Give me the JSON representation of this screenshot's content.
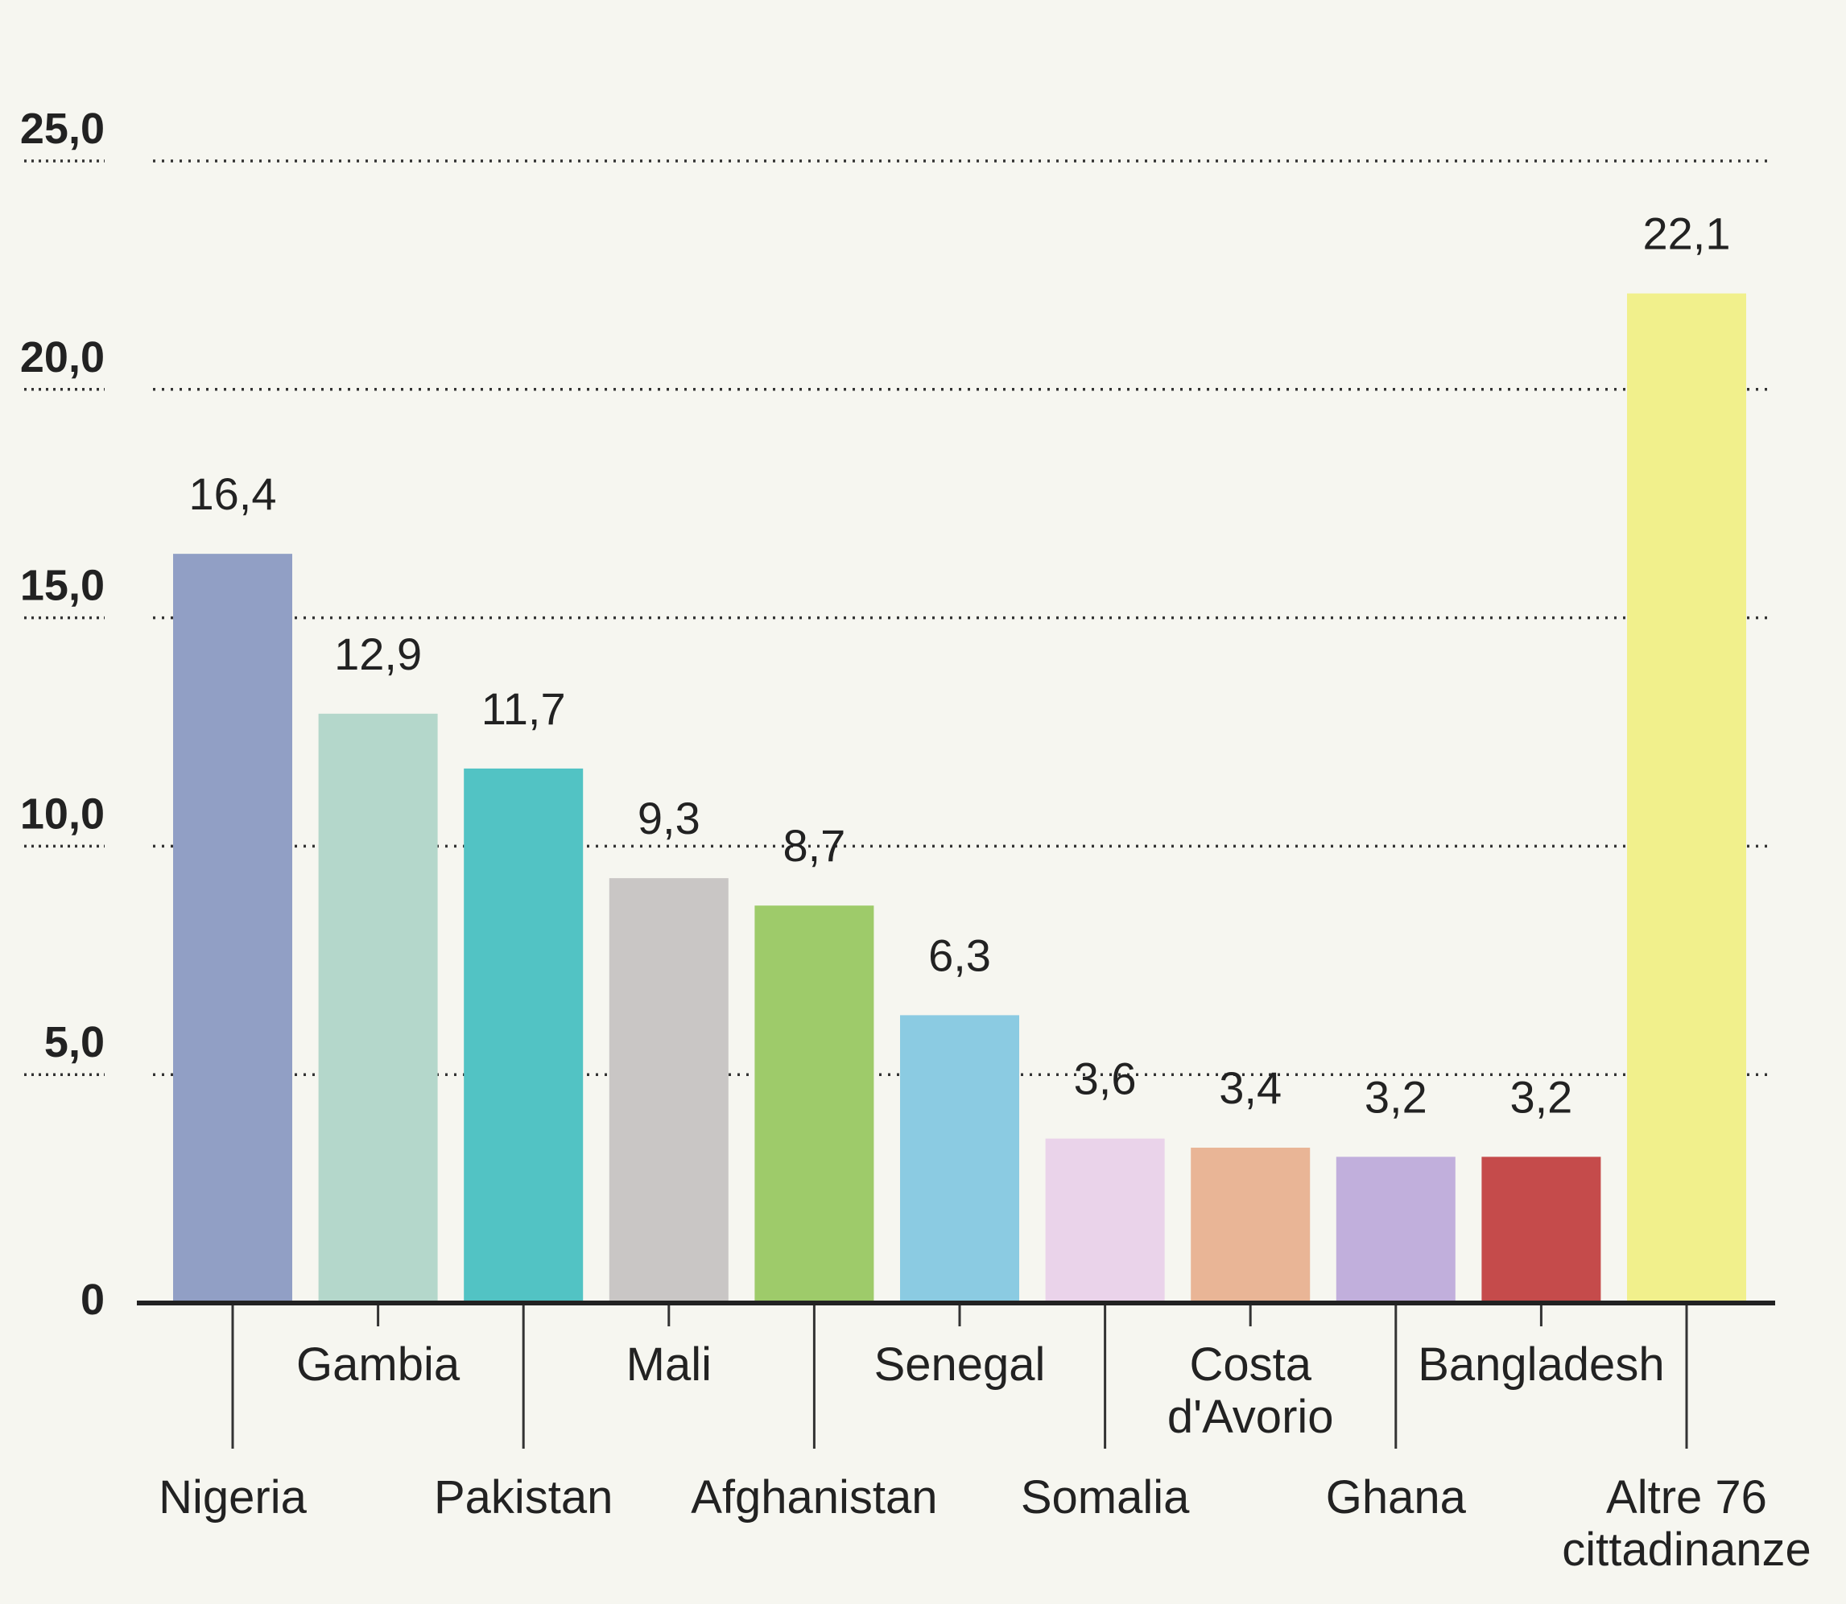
{
  "chart_data": {
    "type": "bar",
    "categories": [
      "Nigeria",
      "Gambia",
      "Pakistan",
      "Mali",
      "Afghanistan",
      "Senegal",
      "Somalia",
      "Costa d'Avorio",
      "Ghana",
      "Bangladesh",
      "Altre 76 cittadinanze"
    ],
    "category_lines": [
      [
        "Nigeria"
      ],
      [
        "Gambia"
      ],
      [
        "Pakistan"
      ],
      [
        "Mali"
      ],
      [
        "Afghanistan"
      ],
      [
        "Senegal"
      ],
      [
        "Somalia"
      ],
      [
        "Costa",
        "d'Avorio"
      ],
      [
        "Ghana"
      ],
      [
        "Bangladesh"
      ],
      [
        "Altre 76",
        "cittadinanze"
      ]
    ],
    "values": [
      16.4,
      12.9,
      11.7,
      9.3,
      8.7,
      6.3,
      3.6,
      3.4,
      3.2,
      3.2,
      22.1
    ],
    "value_labels": [
      "16,4",
      "12,9",
      "11,7",
      "9,3",
      "8,7",
      "6,3",
      "3,6",
      "3,4",
      "3,2",
      "3,2",
      "22,1"
    ],
    "colors": [
      "#919fc5",
      "#b4d7cb",
      "#52c3c4",
      "#c9c6c5",
      "#9ecb6a",
      "#8bcbe2",
      "#ead3ea",
      "#e9b596",
      "#c1afdc",
      "#c54b4b",
      "#f1f08c"
    ],
    "yticks": [
      0,
      5,
      10,
      15,
      20,
      25
    ],
    "ytick_labels": [
      "0",
      "5,0",
      "10,0",
      "15,0",
      "20,0",
      "25,0"
    ],
    "ylim": [
      0,
      25
    ],
    "grid": "dotted horizontal",
    "title": "",
    "xlabel": "",
    "ylabel": ""
  }
}
